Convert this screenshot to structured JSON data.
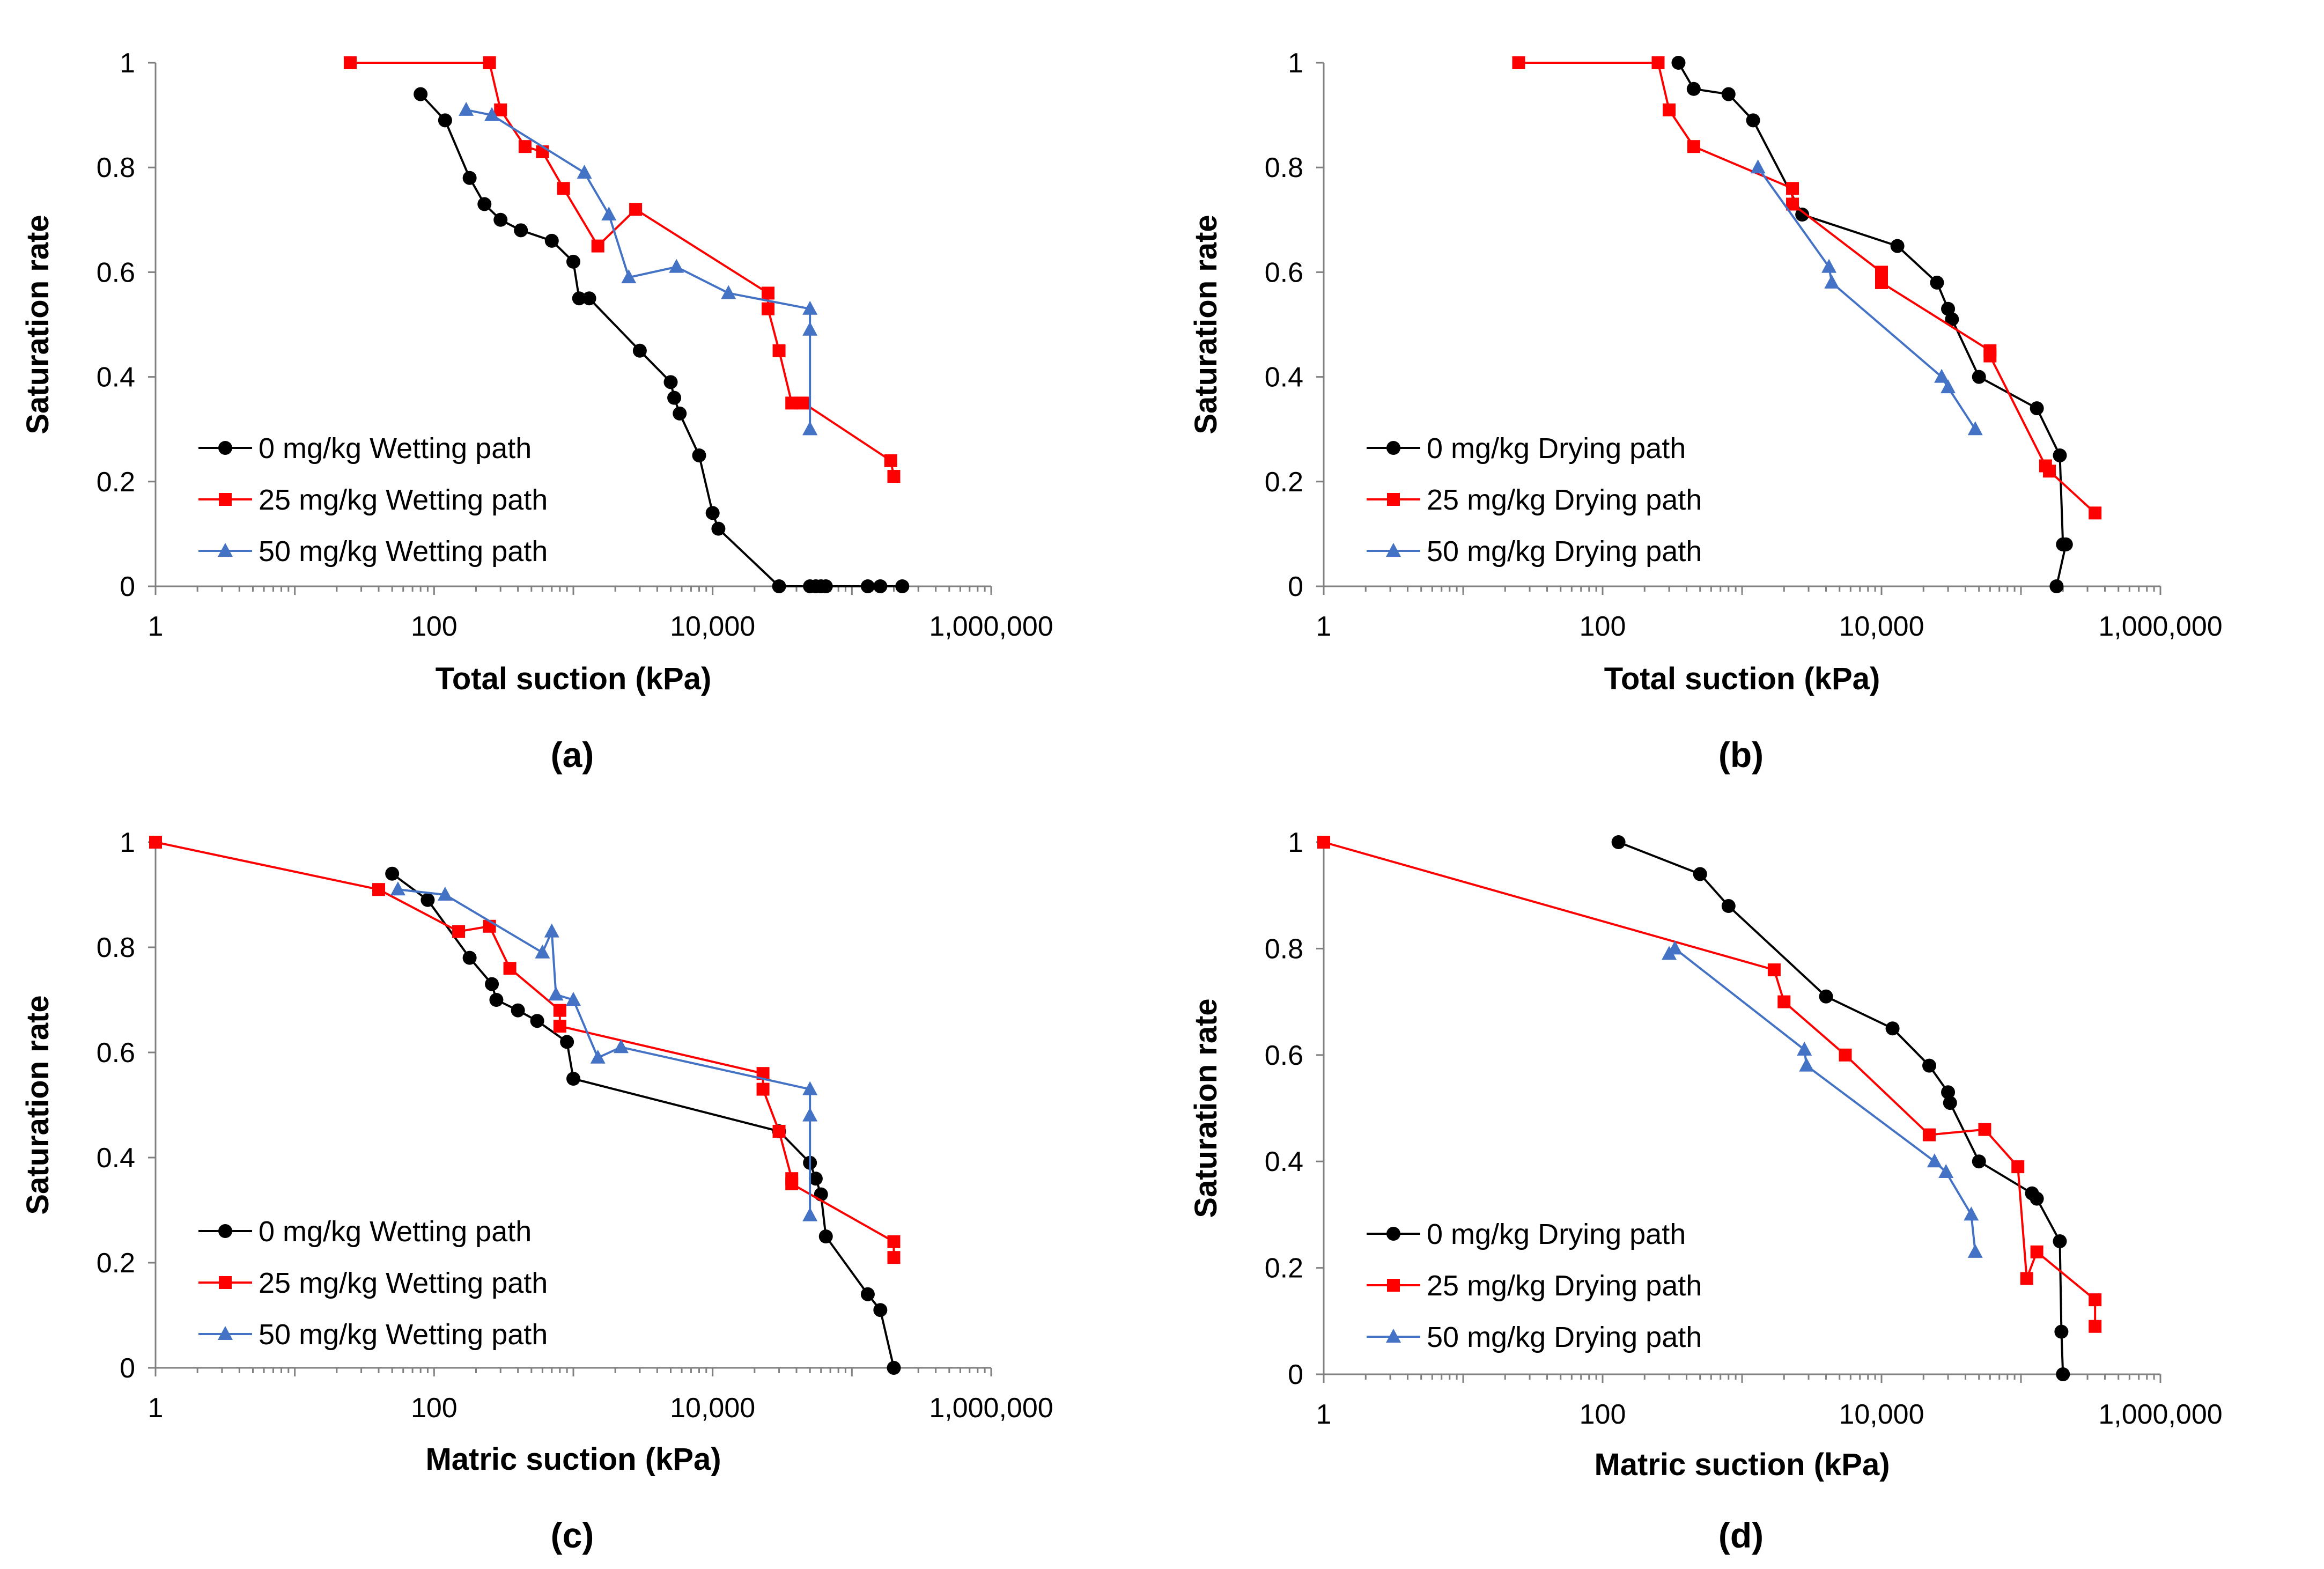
{
  "chart_data": [
    {
      "type": "line",
      "panel_label": "(a)",
      "xlabel": "Total suction (kPa)",
      "ylabel": "Saturation rate",
      "xscale": "log",
      "xlim": [
        1,
        1000000
      ],
      "ylim": [
        0,
        1
      ],
      "xticks": [
        "1",
        "100",
        "10,000",
        "1,000,000"
      ],
      "yticks": [
        "0",
        "0.2",
        "0.4",
        "0.6",
        "0.8",
        "1"
      ],
      "legend_position": "lower-left",
      "series": [
        {
          "name": "0 mg/kg Wetting path",
          "color": "#000000",
          "marker": "circle",
          "x": [
            80,
            120,
            180,
            230,
            300,
            420,
            700,
            1000,
            1100,
            1300,
            3000,
            5000,
            5300,
            5800,
            8000,
            10000,
            11000,
            30000,
            50000,
            55000,
            60000,
            65000,
            130000,
            160000,
            230000
          ],
          "y": [
            0.94,
            0.89,
            0.78,
            0.73,
            0.7,
            0.68,
            0.66,
            0.62,
            0.55,
            0.55,
            0.45,
            0.39,
            0.36,
            0.33,
            0.25,
            0.14,
            0.11,
            0.0,
            0.0,
            0.0,
            0.0,
            0.0,
            0.0,
            0.0,
            0.0
          ]
        },
        {
          "name": "25 mg/kg Wetting path",
          "color": "#ff0000",
          "marker": "square",
          "x": [
            25,
            250,
            300,
            450,
            600,
            850,
            1500,
            2800,
            25000,
            25000,
            30000,
            37000,
            45000,
            190000,
            200000
          ],
          "y": [
            1.0,
            1.0,
            0.91,
            0.84,
            0.83,
            0.76,
            0.65,
            0.72,
            0.56,
            0.53,
            0.45,
            0.35,
            0.35,
            0.24,
            0.21
          ],
          "note": "x values estimated along the drawn curve"
        },
        {
          "name": "50 mg/kg Wetting path",
          "color": "#4472c4",
          "marker": "triangle",
          "x": [
            170,
            260,
            1200,
            1800,
            2500,
            5500,
            13000,
            50000,
            50000,
            50000,
            50000
          ],
          "y": [
            0.91,
            0.9,
            0.79,
            0.71,
            0.59,
            0.61,
            0.56,
            0.53,
            0.49,
            0.3,
            0.3
          ]
        }
      ]
    },
    {
      "type": "line",
      "panel_label": "(b)",
      "xlabel": "Total suction (kPa)",
      "ylabel": "Saturation rate",
      "xscale": "log",
      "xlim": [
        1,
        1000000
      ],
      "ylim": [
        0,
        1
      ],
      "xticks": [
        "1",
        "100",
        "10,000",
        "1,000,000"
      ],
      "yticks": [
        "0",
        "0.2",
        "0.4",
        "0.6",
        "0.8",
        "1"
      ],
      "legend_position": "lower-left",
      "series": [
        {
          "name": "0 mg/kg Drying path",
          "color": "#000000",
          "marker": "circle",
          "x": [
            350,
            450,
            800,
            1200,
            2700,
            13000,
            25000,
            30000,
            32000,
            50000,
            130000,
            190000,
            200000,
            210000,
            180000
          ],
          "y": [
            1.0,
            0.95,
            0.94,
            0.89,
            0.71,
            0.65,
            0.58,
            0.53,
            0.51,
            0.4,
            0.34,
            0.25,
            0.08,
            0.08,
            0.0
          ]
        },
        {
          "name": "25 mg/kg Drying path",
          "color": "#ff0000",
          "marker": "square",
          "x": [
            25,
            250,
            300,
            450,
            2300,
            2300,
            10000,
            10000,
            60000,
            60000,
            150000,
            160000,
            340000
          ],
          "y": [
            1.0,
            1.0,
            0.91,
            0.84,
            0.76,
            0.73,
            0.6,
            0.58,
            0.45,
            0.44,
            0.23,
            0.22,
            0.14
          ]
        },
        {
          "name": "50 mg/kg Drying path",
          "color": "#4472c4",
          "marker": "triangle",
          "x": [
            1300,
            4200,
            4400,
            27000,
            30000,
            47000
          ],
          "y": [
            0.8,
            0.61,
            0.58,
            0.4,
            0.38,
            0.3
          ]
        }
      ]
    },
    {
      "type": "line",
      "panel_label": "(c)",
      "xlabel": "Matric suction (kPa)",
      "ylabel": "Saturation rate",
      "xscale": "log",
      "xlim": [
        1,
        1000000
      ],
      "ylim": [
        0,
        1
      ],
      "xticks": [
        "1",
        "100",
        "10,000",
        "1,000,000"
      ],
      "yticks": [
        "0",
        "0.2",
        "0.4",
        "0.6",
        "0.8",
        "1"
      ],
      "legend_position": "lower-left",
      "series": [
        {
          "name": "0 mg/kg Wetting path",
          "color": "#000000",
          "marker": "circle",
          "x": [
            50,
            90,
            180,
            260,
            280,
            400,
            550,
            900,
            1000,
            30000,
            50000,
            55000,
            60000,
            65000,
            130000,
            160000,
            200000
          ],
          "y": [
            0.94,
            0.89,
            0.78,
            0.73,
            0.7,
            0.68,
            0.66,
            0.62,
            0.55,
            0.45,
            0.39,
            0.36,
            0.33,
            0.25,
            0.14,
            0.11,
            0.0
          ]
        },
        {
          "name": "25 mg/kg Wetting path",
          "color": "#ff0000",
          "marker": "square",
          "x": [
            1,
            40,
            150,
            250,
            350,
            800,
            800,
            23000,
            23000,
            30000,
            37000,
            37000,
            200000,
            200000
          ],
          "y": [
            1.0,
            0.91,
            0.83,
            0.84,
            0.76,
            0.68,
            0.65,
            0.56,
            0.53,
            0.45,
            0.36,
            0.35,
            0.24,
            0.21
          ]
        },
        {
          "name": "50 mg/kg Wetting path",
          "color": "#4472c4",
          "marker": "triangle",
          "x": [
            55,
            120,
            600,
            700,
            750,
            1000,
            1500,
            2200,
            50000,
            50000,
            50000
          ],
          "y": [
            0.91,
            0.9,
            0.79,
            0.83,
            0.71,
            0.7,
            0.59,
            0.61,
            0.53,
            0.48,
            0.29
          ]
        }
      ]
    },
    {
      "type": "line",
      "panel_label": "(d)",
      "xlabel": "Matric suction (kPa)",
      "ylabel": "Saturation rate",
      "xscale": "log",
      "xlim": [
        1,
        1000000
      ],
      "ylim": [
        0,
        1
      ],
      "xticks": [
        "1",
        "100",
        "10,000",
        "1,000,000"
      ],
      "yticks": [
        "0",
        "0.2",
        "0.4",
        "0.6",
        "0.8",
        "1"
      ],
      "legend_position": "lower-left",
      "series": [
        {
          "name": "0 mg/kg Drying path",
          "color": "#000000",
          "marker": "circle",
          "x": [
            130,
            500,
            800,
            4000,
            12000,
            22000,
            30000,
            31000,
            50000,
            120000,
            130000,
            190000,
            195000,
            200000
          ],
          "y": [
            1.0,
            0.94,
            0.88,
            0.71,
            0.65,
            0.58,
            0.53,
            0.51,
            0.4,
            0.34,
            0.33,
            0.25,
            0.08,
            0.0
          ]
        },
        {
          "name": "25 mg/kg Drying path",
          "color": "#ff0000",
          "marker": "square",
          "x": [
            1,
            1700,
            2000,
            5500,
            22000,
            55000,
            95000,
            110000,
            130000,
            340000,
            340000
          ],
          "y": [
            1.0,
            0.76,
            0.7,
            0.6,
            0.45,
            0.46,
            0.39,
            0.18,
            0.23,
            0.14,
            0.09
          ]
        },
        {
          "name": "50 mg/kg Drying path",
          "color": "#4472c4",
          "marker": "triangle",
          "x": [
            300,
            330,
            2800,
            2900,
            24000,
            29000,
            44000,
            47000
          ],
          "y": [
            0.79,
            0.8,
            0.61,
            0.58,
            0.4,
            0.38,
            0.3,
            0.23
          ]
        }
      ]
    }
  ]
}
